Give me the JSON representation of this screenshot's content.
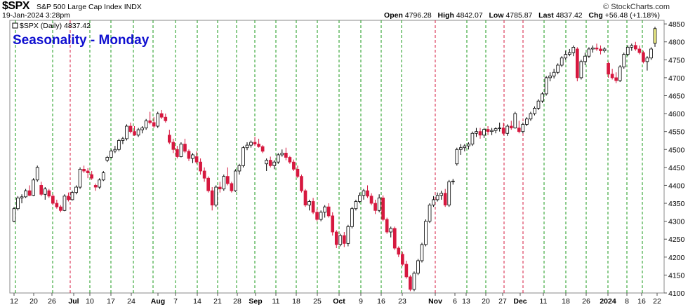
{
  "header": {
    "symbol": "$SPX",
    "description": "S&P 500 Large Cap Index INDX",
    "datetime": "19-Jan-2024 3:28pm",
    "brand": "© StockCharts.com",
    "open_label": "Open",
    "open": "4796.28",
    "high_label": "High",
    "high": "4842.07",
    "low_label": "Low",
    "low": "4785.87",
    "last_label": "Last",
    "last": "4837.42",
    "chg_label": "Chg",
    "chg": "+56.48 (+1.18%)"
  },
  "chart_data": {
    "type": "candlestick",
    "title": "Seasonality - Monday",
    "legend": "$SPX (Daily) 4837.42",
    "ylim": [
      4100,
      4860
    ],
    "yticks": [
      4100,
      4150,
      4200,
      4250,
      4300,
      4350,
      4400,
      4450,
      4500,
      4550,
      4600,
      4650,
      4700,
      4750,
      4800,
      4850
    ],
    "x_tick_labels": [
      "12",
      "20",
      "26",
      "Jul",
      "10",
      "17",
      "24",
      "Aug",
      "7",
      "14",
      "21",
      "28",
      "Sep",
      "11",
      "18",
      "25",
      "Oct",
      "9",
      "16",
      "23",
      "Nov",
      "6",
      "13",
      "20",
      "27",
      "Dec",
      "11",
      "18",
      "26",
      "2024",
      "8",
      "16",
      "22"
    ],
    "bold_tick_labels": [
      "Jul",
      "Aug",
      "Sep",
      "Oct",
      "Nov",
      "Dec",
      "2024"
    ],
    "monday_lines": "green dashed = Monday, red dashed = losing Monday",
    "colors": {
      "up_fill": "#ffffff",
      "down_fill": "#d6183f",
      "green_line": "#1a9a1a",
      "red_line": "#d6183f",
      "title": "#1010d0",
      "last_candle": "#f2f28a"
    },
    "candles": [
      [
        4300,
        4340,
        4297,
        4335
      ],
      [
        4335,
        4370,
        4330,
        4365
      ],
      [
        4365,
        4375,
        4350,
        4368
      ],
      [
        4368,
        4390,
        4365,
        4385
      ],
      [
        4385,
        4400,
        4370,
        4372
      ],
      [
        4372,
        4420,
        4370,
        4415
      ],
      [
        4415,
        4455,
        4410,
        4450
      ],
      [
        4400,
        4410,
        4370,
        4375
      ],
      [
        4375,
        4395,
        4360,
        4390
      ],
      [
        4385,
        4390,
        4365,
        4370
      ],
      [
        4370,
        4375,
        4345,
        4350
      ],
      [
        4350,
        4360,
        4335,
        4340
      ],
      [
        4340,
        4345,
        4325,
        4330
      ],
      [
        4330,
        4375,
        4328,
        4370
      ],
      [
        4370,
        4380,
        4355,
        4360
      ],
      [
        4360,
        4385,
        4358,
        4380
      ],
      [
        4380,
        4400,
        4375,
        4395
      ],
      [
        4395,
        4450,
        4390,
        4445
      ],
      [
        4445,
        4455,
        4435,
        4440
      ],
      [
        4440,
        4448,
        4420,
        4435
      ],
      [
        4430,
        4440,
        4415,
        4420
      ],
      [
        4400,
        4405,
        4385,
        4395
      ],
      [
        4395,
        4420,
        4390,
        4415
      ],
      [
        4415,
        4440,
        4412,
        4435
      ],
      [
        4470,
        4482,
        4465,
        4478
      ],
      [
        4478,
        4500,
        4475,
        4496
      ],
      [
        4496,
        4510,
        4490,
        4500
      ],
      [
        4500,
        4530,
        4495,
        4525
      ],
      [
        4525,
        4535,
        4515,
        4530
      ],
      [
        4530,
        4570,
        4525,
        4565
      ],
      [
        4565,
        4575,
        4545,
        4550
      ],
      [
        4550,
        4565,
        4538,
        4540
      ],
      [
        4540,
        4560,
        4535,
        4555
      ],
      [
        4555,
        4565,
        4545,
        4560
      ],
      [
        4560,
        4585,
        4555,
        4580
      ],
      [
        4580,
        4605,
        4570,
        4575
      ],
      [
        4575,
        4590,
        4560,
        4565
      ],
      [
        4565,
        4605,
        4560,
        4600
      ],
      [
        4600,
        4610,
        4585,
        4590
      ],
      [
        4590,
        4600,
        4575,
        4580
      ],
      [
        4540,
        4555,
        4515,
        4520
      ],
      [
        4520,
        4530,
        4490,
        4500
      ],
      [
        4500,
        4510,
        4475,
        4480
      ],
      [
        4480,
        4520,
        4478,
        4515
      ],
      [
        4515,
        4530,
        4490,
        4495
      ],
      [
        4495,
        4500,
        4468,
        4475
      ],
      [
        4475,
        4490,
        4462,
        4485
      ],
      [
        4480,
        4495,
        4460,
        4465
      ],
      [
        4465,
        4475,
        4430,
        4440
      ],
      [
        4440,
        4450,
        4410,
        4420
      ],
      [
        4420,
        4425,
        4380,
        4385
      ],
      [
        4385,
        4395,
        4330,
        4345
      ],
      [
        4345,
        4400,
        4340,
        4395
      ],
      [
        4395,
        4410,
        4380,
        4390
      ],
      [
        4390,
        4430,
        4385,
        4425
      ],
      [
        4425,
        4450,
        4400,
        4405
      ],
      [
        4405,
        4410,
        4380,
        4385
      ],
      [
        4385,
        4445,
        4382,
        4440
      ],
      [
        4440,
        4460,
        4430,
        4455
      ],
      [
        4455,
        4510,
        4450,
        4505
      ],
      [
        4505,
        4520,
        4498,
        4512
      ],
      [
        4512,
        4525,
        4505,
        4520
      ],
      [
        4520,
        4535,
        4510,
        4515
      ],
      [
        4515,
        4530,
        4505,
        4508
      ],
      [
        4508,
        4512,
        4490,
        4495
      ],
      [
        4460,
        4475,
        4440,
        4470
      ],
      [
        4470,
        4480,
        4450,
        4455
      ],
      [
        4455,
        4470,
        4445,
        4465
      ],
      [
        4465,
        4490,
        4460,
        4485
      ],
      [
        4485,
        4500,
        4480,
        4490
      ],
      [
        4490,
        4505,
        4470,
        4478
      ],
      [
        4478,
        4482,
        4460,
        4465
      ],
      [
        4465,
        4472,
        4440,
        4445
      ],
      [
        4445,
        4455,
        4420,
        4425
      ],
      [
        4425,
        4430,
        4380,
        4385
      ],
      [
        4385,
        4390,
        4340,
        4345
      ],
      [
        4345,
        4360,
        4330,
        4355
      ],
      [
        4355,
        4365,
        4320,
        4325
      ],
      [
        4325,
        4335,
        4300,
        4305
      ],
      [
        4305,
        4330,
        4300,
        4325
      ],
      [
        4325,
        4345,
        4310,
        4340
      ],
      [
        4340,
        4350,
        4310,
        4315
      ],
      [
        4315,
        4325,
        4260,
        4270
      ],
      [
        4270,
        4275,
        4225,
        4235
      ],
      [
        4235,
        4265,
        4230,
        4260
      ],
      [
        4260,
        4270,
        4228,
        4238
      ],
      [
        4238,
        4290,
        4230,
        4285
      ],
      [
        4285,
        4340,
        4280,
        4335
      ],
      [
        4335,
        4360,
        4330,
        4355
      ],
      [
        4355,
        4380,
        4350,
        4372
      ],
      [
        4372,
        4390,
        4360,
        4385
      ],
      [
        4385,
        4400,
        4365,
        4370
      ],
      [
        4370,
        4378,
        4345,
        4350
      ],
      [
        4350,
        4360,
        4320,
        4330
      ],
      [
        4330,
        4375,
        4325,
        4365
      ],
      [
        4365,
        4372,
        4300,
        4305
      ],
      [
        4305,
        4310,
        4265,
        4270
      ],
      [
        4270,
        4285,
        4255,
        4280
      ],
      [
        4280,
        4285,
        4220,
        4225
      ],
      [
        4225,
        4230,
        4200,
        4208
      ],
      [
        4208,
        4215,
        4175,
        4180
      ],
      [
        4180,
        4190,
        4140,
        4145
      ],
      [
        4145,
        4150,
        4105,
        4110
      ],
      [
        4110,
        4160,
        4105,
        4155
      ],
      [
        4155,
        4195,
        4150,
        4190
      ],
      [
        4190,
        4240,
        4185,
        4235
      ],
      [
        4235,
        4305,
        4230,
        4300
      ],
      [
        4300,
        4350,
        4295,
        4345
      ],
      [
        4345,
        4370,
        4340,
        4360
      ],
      [
        4360,
        4380,
        4355,
        4372
      ],
      [
        4372,
        4385,
        4360,
        4378
      ],
      [
        4378,
        4390,
        4340,
        4345
      ],
      [
        4345,
        4415,
        4340,
        4410
      ],
      [
        4410,
        4418,
        4402,
        4412
      ],
      [
        4460,
        4505,
        4455,
        4500
      ],
      [
        4500,
        4515,
        4485,
        4505
      ],
      [
        4505,
        4515,
        4495,
        4510
      ],
      [
        4510,
        4520,
        4500,
        4515
      ],
      [
        4515,
        4550,
        4510,
        4545
      ],
      [
        4545,
        4560,
        4535,
        4550
      ],
      [
        4550,
        4560,
        4530,
        4540
      ],
      [
        4540,
        4560,
        4532,
        4556
      ],
      [
        4556,
        4565,
        4540,
        4550
      ],
      [
        4550,
        4560,
        4540,
        4553
      ],
      [
        4553,
        4562,
        4545,
        4558
      ],
      [
        4558,
        4575,
        4550,
        4560
      ],
      [
        4560,
        4575,
        4540,
        4545
      ],
      [
        4545,
        4570,
        4538,
        4565
      ],
      [
        4565,
        4580,
        4555,
        4560
      ],
      [
        4560,
        4605,
        4558,
        4600
      ],
      [
        4560,
        4580,
        4545,
        4550
      ],
      [
        4550,
        4575,
        4545,
        4570
      ],
      [
        4570,
        4590,
        4565,
        4585
      ],
      [
        4585,
        4605,
        4580,
        4600
      ],
      [
        4600,
        4620,
        4595,
        4615
      ],
      [
        4615,
        4640,
        4610,
        4635
      ],
      [
        4635,
        4660,
        4630,
        4655
      ],
      [
        4655,
        4705,
        4650,
        4700
      ],
      [
        4700,
        4715,
        4690,
        4705
      ],
      [
        4705,
        4725,
        4698,
        4715
      ],
      [
        4715,
        4740,
        4710,
        4735
      ],
      [
        4735,
        4760,
        4730,
        4755
      ],
      [
        4755,
        4775,
        4750,
        4765
      ],
      [
        4765,
        4780,
        4760,
        4770
      ],
      [
        4770,
        4790,
        4760,
        4785
      ],
      [
        4780,
        4785,
        4690,
        4700
      ],
      [
        4700,
        4750,
        4695,
        4745
      ],
      [
        4745,
        4770,
        4735,
        4760
      ],
      [
        4760,
        4785,
        4755,
        4780
      ],
      [
        4780,
        4790,
        4770,
        4783
      ],
      [
        4783,
        4795,
        4775,
        4780
      ],
      [
        4780,
        4790,
        4765,
        4775
      ],
      [
        4775,
        4785,
        4770,
        4780
      ],
      [
        4740,
        4745,
        4700,
        4710
      ],
      [
        4710,
        4725,
        4695,
        4700
      ],
      [
        4700,
        4715,
        4685,
        4692
      ],
      [
        4692,
        4735,
        4688,
        4730
      ],
      [
        4730,
        4770,
        4725,
        4765
      ],
      [
        4765,
        4790,
        4760,
        4785
      ],
      [
        4785,
        4795,
        4775,
        4790
      ],
      [
        4790,
        4800,
        4775,
        4780
      ],
      [
        4780,
        4790,
        4765,
        4770
      ],
      [
        4770,
        4775,
        4740,
        4745
      ],
      [
        4745,
        4760,
        4720,
        4755
      ],
      [
        4755,
        4785,
        4750,
        4780
      ],
      [
        4796,
        4842,
        4786,
        4837
      ]
    ]
  }
}
